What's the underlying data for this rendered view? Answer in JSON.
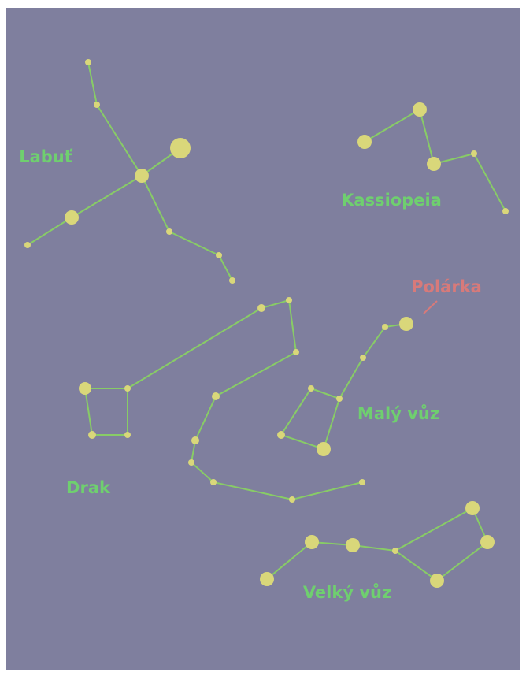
{
  "constellations": [
    {
      "name": "Labuť"
    },
    {
      "name": "Kassiopeia"
    },
    {
      "name": "Malý vůz"
    },
    {
      "name": "Drak"
    },
    {
      "name": "Velký vůz"
    }
  ],
  "pole_star": {
    "name": "Polárka"
  }
}
